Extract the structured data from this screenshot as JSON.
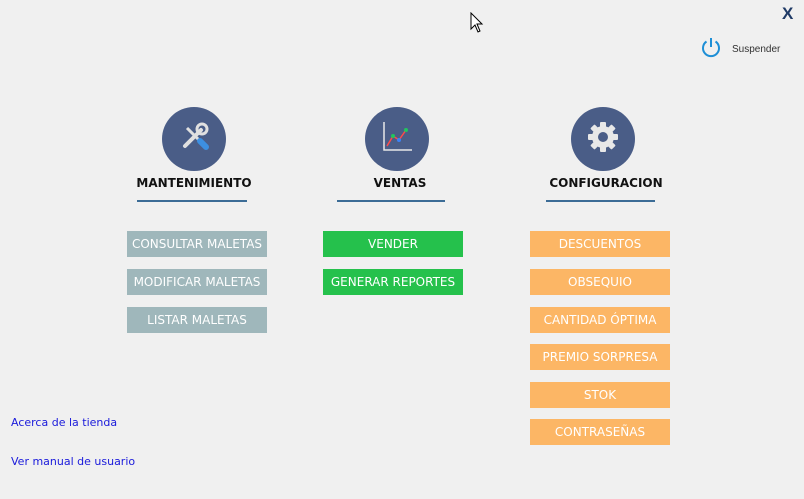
{
  "window": {
    "close_label": "X"
  },
  "suspend": {
    "label": "Suspender"
  },
  "colors": {
    "circle": "#4a5d87",
    "underline": "#3c6c96",
    "gray": "#9fb7bb",
    "green": "#25c14c",
    "orange": "#fcb665",
    "link": "#1a1adb"
  },
  "sections": {
    "mantenimiento": {
      "title": "MANTENIMIENTO",
      "icon": "wrench-screwdriver-icon",
      "buttons": [
        "CONSULTAR MALETAS",
        "MODIFICAR MALETAS",
        "LISTAR MALETAS"
      ]
    },
    "ventas": {
      "title": "VENTAS",
      "icon": "line-chart-icon",
      "buttons": [
        "VENDER",
        "GENERAR REPORTES"
      ]
    },
    "configuracion": {
      "title": "CONFIGURACION",
      "icon": "gear-icon",
      "buttons": [
        "DESCUENTOS",
        "OBSEQUIO",
        "CANTIDAD ÓPTIMA",
        "PREMIO SORPRESA",
        "STOK",
        "CONTRASEÑAS"
      ]
    }
  },
  "links": {
    "about": "Acerca de la tienda",
    "manual": "Ver manual de usuario"
  }
}
